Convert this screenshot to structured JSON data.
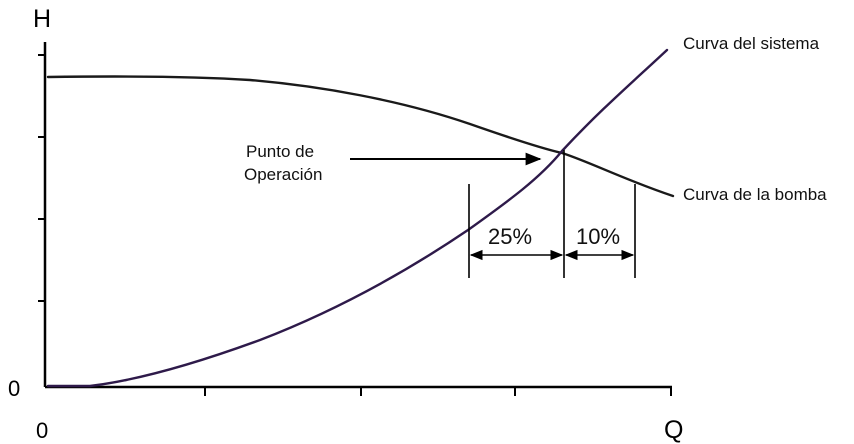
{
  "axes": {
    "y_label": "H",
    "x_label": "Q",
    "y_origin": "0",
    "x_origin": "0"
  },
  "curves": {
    "system_label": "Curva del sistema",
    "pump_label": "Curva de la bomba"
  },
  "operating_point": {
    "label_line1": "Punto de",
    "label_line2": "Operación"
  },
  "margins": {
    "left_percent": "25%",
    "right_percent": "10%"
  },
  "colors": {
    "line": "#000000",
    "system_curve": "#2e1a4a"
  }
}
